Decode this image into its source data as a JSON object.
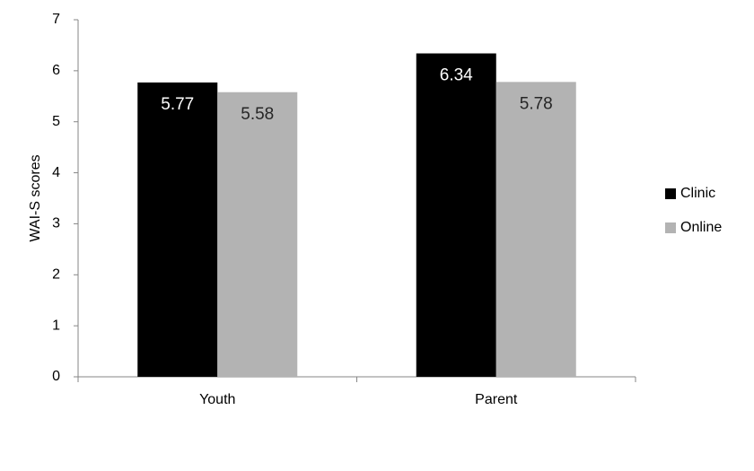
{
  "chart_data": {
    "type": "bar",
    "y_label": "WAI-S scores",
    "categories": [
      "Youth",
      "Parent"
    ],
    "series": [
      {
        "name": "Clinic",
        "color": "#000000",
        "values": [
          5.77,
          6.34
        ]
      },
      {
        "name": "Online",
        "color": "#b3b3b3",
        "values": [
          5.58,
          5.78
        ]
      }
    ],
    "ylim": [
      0,
      7
    ],
    "yticks": [
      0,
      1,
      2,
      3,
      4,
      5,
      6,
      7
    ],
    "grid": false,
    "legend": "right"
  }
}
